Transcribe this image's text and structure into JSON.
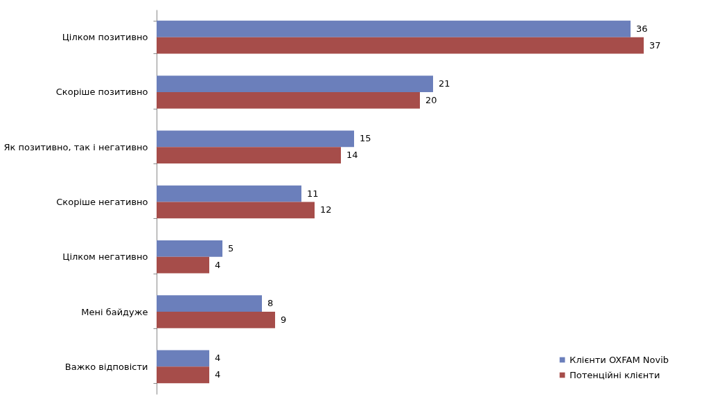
{
  "chart_data": {
    "type": "bar",
    "orientation": "horizontal",
    "categories": [
      "Цілком позитивно",
      "Скоріше позитивно",
      "Як позитивно, так і негативно",
      "Скоріше негативно",
      "Цілком негативно",
      "Мені байдуже",
      "Важко відповісти"
    ],
    "series": [
      {
        "name": "Клієнти OXFAM Novib",
        "color": "#6b7fbb",
        "values": [
          36,
          21,
          15,
          11,
          5,
          8,
          4
        ]
      },
      {
        "name": "Потенційні клієнти",
        "color": "#a64d4a",
        "values": [
          37,
          20,
          14,
          12,
          4,
          9,
          4
        ]
      }
    ],
    "data_labels": true,
    "legend": "bottom right"
  }
}
